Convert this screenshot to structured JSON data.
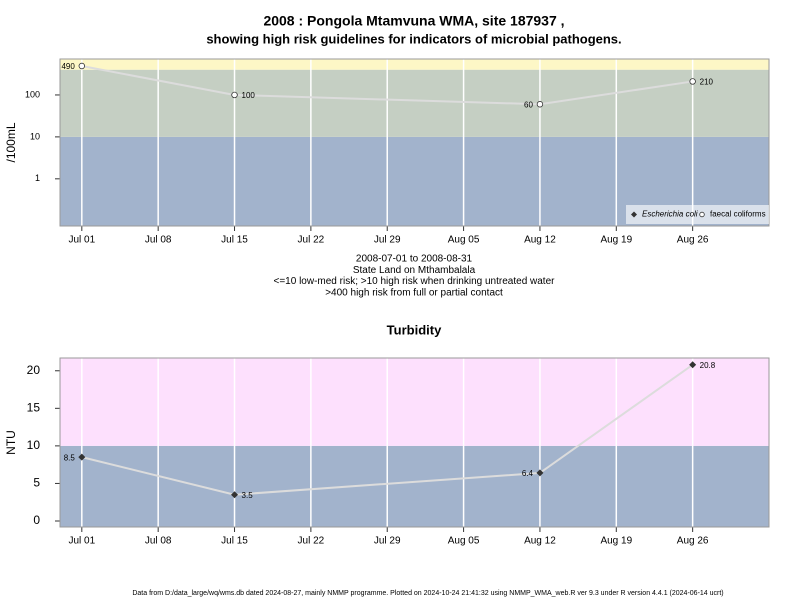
{
  "footer": "Data from D:/data_large/wq/wms.db dated 2024-08-27, mainly NMMP programme. Plotted on 2024-10-24 21:41:32 using NMMP_WMA_web.R ver 9.3 under R version 4.4.1 (2024-06-14 ucrt)",
  "chart_data": [
    {
      "type": "line",
      "title": [
        "2008 : Pongola Mtamvuna WMA, site 187937 ,",
        "showing high risk guidelines for indicators of microbial pathogens."
      ],
      "notes": [
        "2008-07-01 to 2008-08-31",
        "State Land on Mthambalala",
        "<=10 low-med risk; >10 high risk when drinking untreated water",
        ">400 high risk from full or partial contact"
      ],
      "y_label": "/100mL",
      "log_scale": true,
      "x": [
        "Jul 01",
        "Jul 15",
        "Aug 12",
        "Aug 26"
      ],
      "xlim": [
        "Jun 29",
        "Sep 02"
      ],
      "xticks": [
        "Jul 01",
        "Jul 08",
        "Jul 15",
        "Jul 22",
        "Jul 29",
        "Aug 05",
        "Aug 12",
        "Aug 19",
        "Aug 26"
      ],
      "ylim": [
        0.075,
        720
      ],
      "yticks": [
        1,
        10,
        100
      ],
      "thresholds": [
        10,
        400
      ],
      "band_colors": [
        "#a2b3cc",
        "#c5cfc3",
        "#fdf7c6"
      ],
      "grid": true,
      "legend": "bottom right",
      "line_color": "#dcdcdc",
      "series": [
        {
          "name": "Escherichia coli",
          "color": "#333333",
          "marker": "diamond",
          "values": [
            null,
            null,
            null,
            null
          ]
        },
        {
          "name": "faecal coliforms",
          "color": "#333333",
          "marker": "circle-open",
          "values": [
            490,
            100,
            60,
            210
          ]
        }
      ]
    },
    {
      "type": "line",
      "title": [
        "Turbidity"
      ],
      "y_label": "NTU",
      "log_scale": false,
      "x": [
        "Jul 01",
        "Jul 15",
        "Aug 12",
        "Aug 26"
      ],
      "xlim": [
        "Jun 29",
        "Sep 02"
      ],
      "xticks": [
        "Jul 01",
        "Jul 08",
        "Jul 15",
        "Jul 22",
        "Jul 29",
        "Aug 05",
        "Aug 12",
        "Aug 19",
        "Aug 26"
      ],
      "ylim": [
        -0.8,
        21.7
      ],
      "yticks": [
        0,
        5,
        10,
        15,
        20
      ],
      "thresholds": [
        10
      ],
      "band_colors": [
        "#a2b3cc",
        "#fde0fd"
      ],
      "grid": true,
      "line_color": "#dcdcdc",
      "series": [
        {
          "color": "#333333",
          "marker": "diamond",
          "values": [
            8.5,
            3.5,
            6.4,
            20.8
          ]
        }
      ]
    }
  ]
}
